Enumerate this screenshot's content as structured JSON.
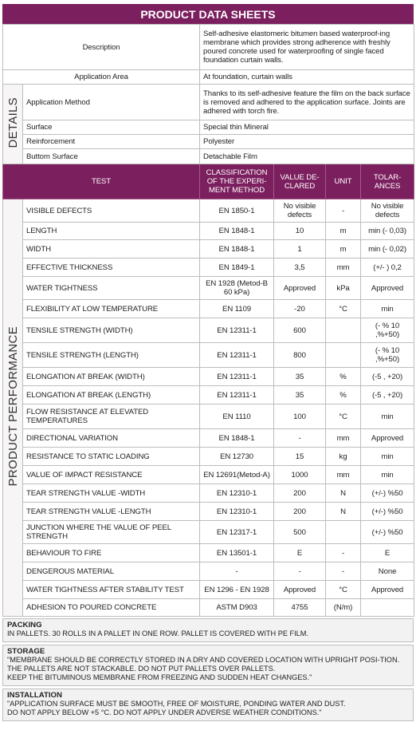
{
  "header": {
    "title": "PRODUCT DATA SHEETS"
  },
  "general": [
    {
      "label": "Description",
      "value": "Self-adhesive elastomeric bitumen based waterproof-ing membrane which provides strong adherence with freshly poured concrete used for waterproofing of single faced foundation curtain walls."
    },
    {
      "label": "Application Area",
      "value": "At foundation, curtain walls"
    }
  ],
  "details": {
    "label": "DETAILS",
    "rows": [
      {
        "label": "Application Method",
        "value": "Thanks to its self-adhesive feature the film on the back surface is removed and adhered to the application surface. Joints are adhered with torch fire."
      },
      {
        "label": "Surface",
        "value": "Special thin Mineral"
      },
      {
        "label": "Reinforcement",
        "value": "Polyester"
      },
      {
        "label": "Buttom Surface",
        "value": "Detachable Film"
      }
    ]
  },
  "performance": {
    "label": "PRODUCT PERFORMANCE",
    "columns": [
      "TEST",
      "CLASSIFICATION OF THE EXPERI-MENT METHOD",
      "VALUE DE-CLARED",
      "UNIT",
      "TOLAR-ANCES"
    ],
    "rows": [
      [
        "VISIBLE DEFECTS",
        "EN 1850-1",
        "No visible defects",
        "-",
        "No visible defects"
      ],
      [
        "LENGTH",
        "EN 1848-1",
        "10",
        "m",
        "min (- 0,03)"
      ],
      [
        "WIDTH",
        "EN 1848-1",
        "1",
        "m",
        "min (- 0,02)"
      ],
      [
        "EFFECTIVE THICKNESS",
        "EN 1849-1",
        "3,5",
        "mm",
        "(+/- )  0,2"
      ],
      [
        "WATER TIGHTNESS",
        "EN 1928 (Metod-B 60 kPa)",
        "Approved",
        "kPa",
        "Approved"
      ],
      [
        "FLEXIBILITY AT LOW TEMPERATURE",
        "EN 1109",
        "-20",
        "°C",
        "min"
      ],
      [
        "TENSILE STRENGTH (WIDTH)",
        "EN 12311-1",
        "600",
        "",
        "(- % 10 ,%+50)"
      ],
      [
        "TENSILE STRENGTH (LENGTH)",
        "EN 12311-1",
        "800",
        "",
        "(- % 10 ,%+50)"
      ],
      [
        "ELONGATION AT BREAK (WIDTH)",
        "EN 12311-1",
        "35",
        "%",
        "(-5 , +20)"
      ],
      [
        "ELONGATION AT BREAK (LENGTH)",
        "EN 12311-1",
        "35",
        "%",
        "(-5 , +20)"
      ],
      [
        "FLOW RESISTANCE AT ELEVATED TEMPERATURES",
        "EN 1110",
        "100",
        "°C",
        "min"
      ],
      [
        "DIRECTIONAL VARIATION",
        "EN 1848-1",
        "-",
        "mm",
        "Approved"
      ],
      [
        "RESISTANCE TO STATIC LOADING",
        "EN 12730",
        "15",
        "kg",
        "min"
      ],
      [
        "VALUE OF IMPACT RESISTANCE",
        "EN 12691(Metod-A)",
        "1000",
        "mm",
        "min"
      ],
      [
        "TEAR STRENGTH VALUE -WIDTH",
        "EN 12310-1",
        "200",
        "N",
        "(+/-) %50"
      ],
      [
        "TEAR STRENGTH VALUE -LENGTH",
        "EN 12310-1",
        "200",
        "N",
        "(+/-) %50"
      ],
      [
        "JUNCTION WHERE THE VALUE OF PEEL STRENGTH",
        "EN 12317-1",
        "500",
        "",
        "(+/-) %50"
      ],
      [
        "BEHAVIOUR TO FIRE",
        "EN 13501-1",
        "E",
        "-",
        "E"
      ],
      [
        "DENGEROUS MATERIAL",
        "-",
        "-",
        "-",
        "None"
      ],
      [
        "WATER TIGHTNESS AFTER STABILITY TEST",
        "EN 1296 - EN 1928",
        "Approved",
        "°C",
        "Approved"
      ],
      [
        "ADHESION TO POURED CONCRETE",
        "ASTM D903",
        "4755",
        "(N/m)",
        ""
      ]
    ]
  },
  "notes": [
    {
      "title": "PACKING",
      "text": "IN PALLETS. 30 ROLLS IN A PALLET IN ONE ROW. PALLET IS COVERED WITH PE FILM."
    },
    {
      "title": "STORAGE",
      "text": "\"MEMBRANE SHOULD BE CORRECTLY STORED IN A DRY AND COVERED LOCATION WITH UPRIGHT POSI-TION. THE PALLETS ARE NOT STACKABLE. DO NOT PUT PALLETS OVER  PALLETS.\nKEEP  THE BITUMINOUS MEMBRANE FROM FREEZING AND SUDDEN HEAT CHANGES.\""
    },
    {
      "title": "INSTALLATION",
      "text": "\"APPLICATION SURFACE MUST BE SMOOTH, FREE OF MOISTURE, PONDING WATER AND DUST.\nDO NOT APPLY BELOW +5 °C.  DO NOT APPLY UNDER ADVERSE WEATHER CONDITIONS.\""
    }
  ]
}
